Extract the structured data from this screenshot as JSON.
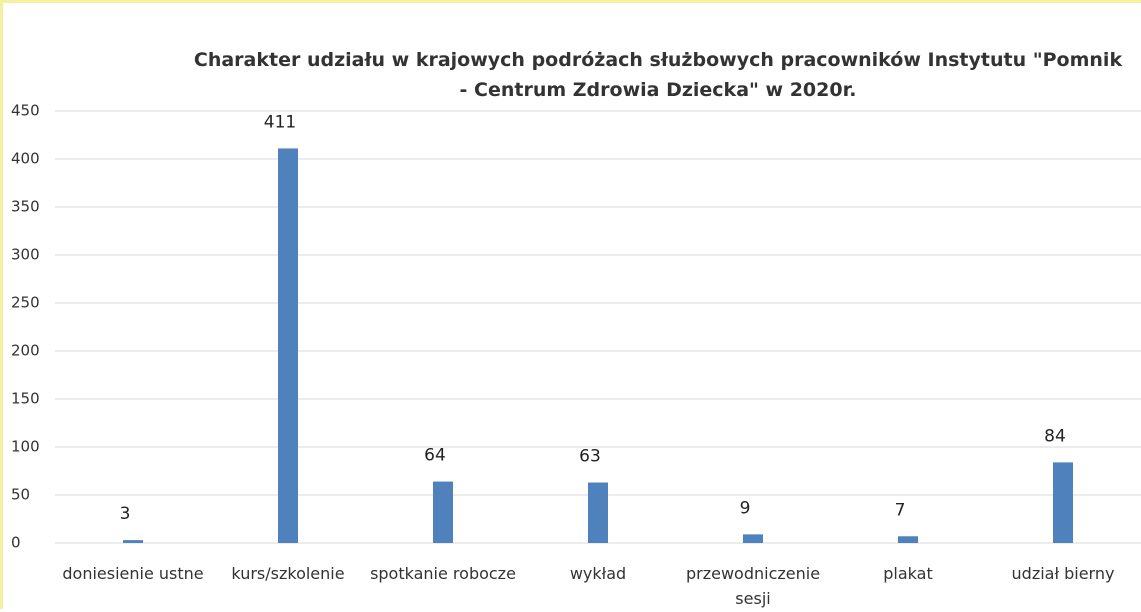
{
  "chart_data": {
    "type": "bar",
    "title": "Charakter udziału w  krajowych podróżach służbowych pracowników Instytutu \"Pomnik - Centrum Zdrowia Dziecka\" w 2020r.",
    "categories": [
      "doniesienie ustne",
      "kurs/szkolenie",
      "spotkanie robocze",
      "wykład",
      "przewodniczenie sesji",
      "plakat",
      "udział bierny"
    ],
    "values": [
      3,
      411,
      64,
      63,
      9,
      7,
      84
    ],
    "color": "#4f81bd",
    "ylim": [
      0,
      450
    ],
    "yticks": [
      0,
      50,
      100,
      150,
      200,
      250,
      300,
      350,
      400,
      450
    ],
    "grid": true
  }
}
